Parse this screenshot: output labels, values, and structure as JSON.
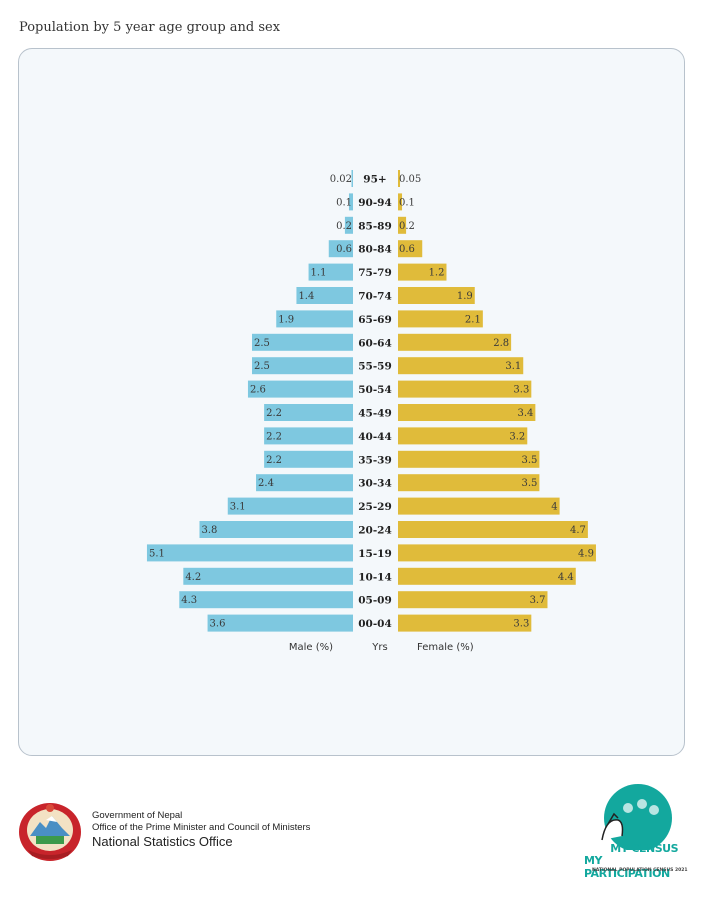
{
  "page": {
    "title": "Population by 5 year age group and sex"
  },
  "chart_data": {
    "type": "bar",
    "orientation": "population-pyramid",
    "categories": [
      "95+",
      "90-94",
      "85-89",
      "80-84",
      "75-79",
      "70-74",
      "65-69",
      "60-64",
      "55-59",
      "50-54",
      "45-49",
      "40-44",
      "35-39",
      "30-34",
      "25-29",
      "20-24",
      "15-19",
      "10-14",
      "05-09",
      "00-04"
    ],
    "series": [
      {
        "name": "Male (%)",
        "color": "#7ec8e0",
        "labels": [
          "0.02",
          "0.1",
          "0.2",
          "0.6",
          "1.1",
          "1.4",
          "1.9",
          "2.5",
          "2.5",
          "2.6",
          "2.2",
          "2.2",
          "2.2",
          "2.4",
          "3.1",
          "3.8",
          "5.1",
          "4.2",
          "4.3",
          "3.6"
        ],
        "values": [
          0.02,
          0.1,
          0.2,
          0.6,
          1.1,
          1.4,
          1.9,
          2.5,
          2.5,
          2.6,
          2.2,
          2.2,
          2.2,
          2.4,
          3.1,
          3.8,
          5.1,
          4.2,
          4.3,
          3.6
        ]
      },
      {
        "name": "Female (%)",
        "color": "#e0bb3a",
        "labels": [
          "0.05",
          "0.1",
          "0.2",
          "0.6",
          "1.2",
          "1.9",
          "2.1",
          "2.8",
          "3.1",
          "3.3",
          "3.4",
          "3.2",
          "3.5",
          "3.5",
          "4",
          "4.7",
          "4.9",
          "4.4",
          "3.7",
          "3.3"
        ],
        "values": [
          0.05,
          0.1,
          0.2,
          0.6,
          1.2,
          1.9,
          2.1,
          2.8,
          3.1,
          3.3,
          3.4,
          3.2,
          3.5,
          3.5,
          4,
          4.7,
          4.9,
          4.4,
          3.7,
          3.3
        ]
      }
    ],
    "center_label": "Yrs",
    "male_axis_label": "Male (%)",
    "female_axis_label": "Female (%)",
    "grid": false,
    "legend": "none"
  },
  "footer": {
    "gov_line1": "Government of Nepal",
    "gov_line2": "Office of the Prime Minister and Council of Ministers",
    "gov_line3": "National Statistics Office",
    "census_line1": "MY CENSUS",
    "census_line2": "MY PARTICIPATION",
    "census_line3": "NATIONAL POPULATION CENSUS 2021"
  }
}
